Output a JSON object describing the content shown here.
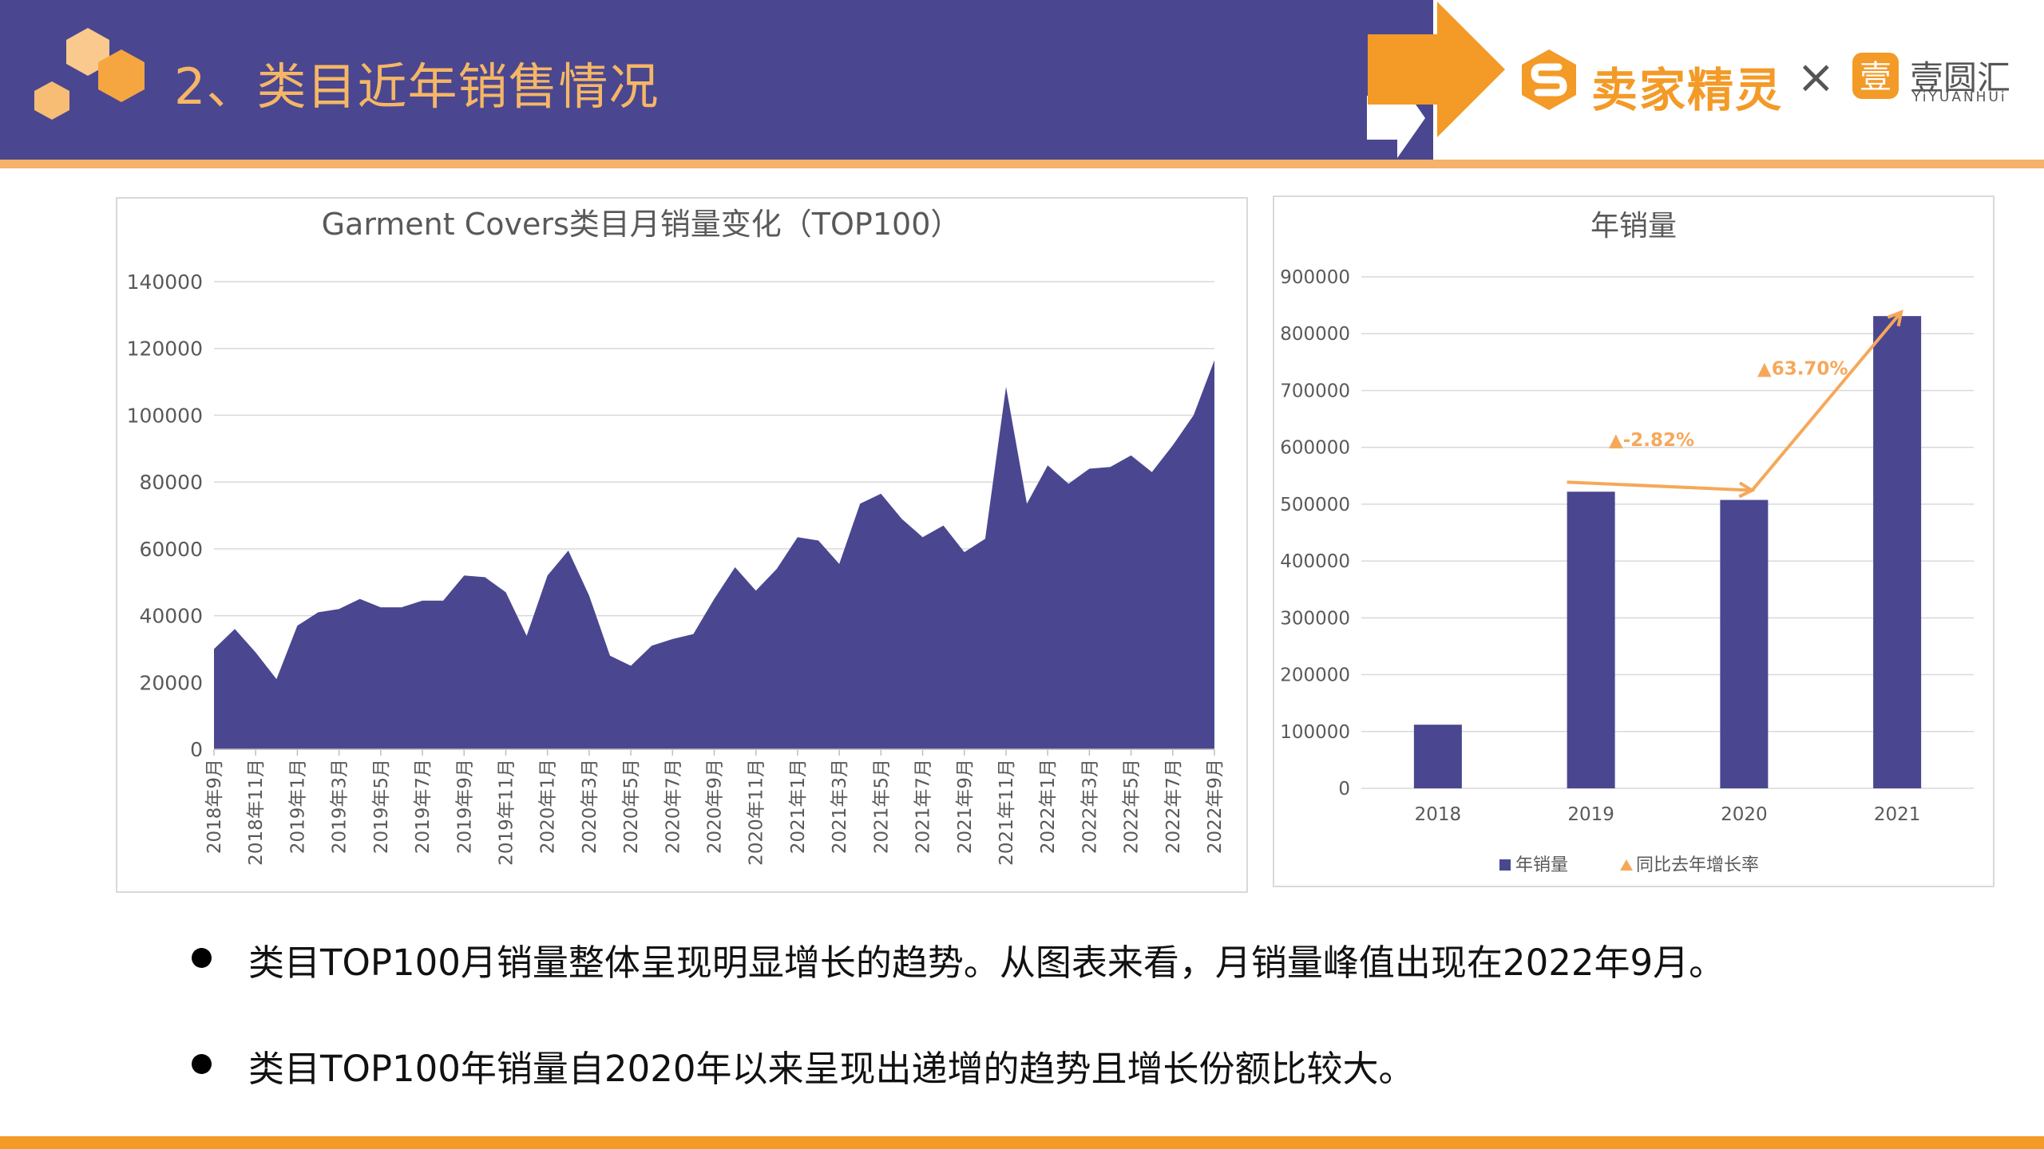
{
  "header": {
    "title": "2、类目近年销售情况",
    "brand_name": "卖家精灵",
    "brand_separator": "×",
    "partner_name": "壹圆汇",
    "partner_name_en": "YiYUANHUi"
  },
  "colors": {
    "header_band": "#4a4790",
    "accent_orange": "#f39a27",
    "title_orange": "#f5b665",
    "series_fill": "#4a4790",
    "annotation": "#f5a85a"
  },
  "chart_data": [
    {
      "type": "area",
      "title": "Garment Covers类目月销量变化（TOP100）",
      "ylim": [
        0,
        140000
      ],
      "y_ticks": [
        "140000",
        "120000",
        "100000",
        "80000",
        "60000",
        "40000",
        "20000",
        "0"
      ],
      "x_tick_labels": [
        "2018年9月",
        "2018年11月",
        "2019年1月",
        "2019年3月",
        "2019年5月",
        "2019年7月",
        "2019年9月",
        "2019年11月",
        "2020年1月",
        "2020年3月",
        "2020年5月",
        "2020年7月",
        "2020年9月",
        "2020年11月",
        "2021年1月",
        "2021年3月",
        "2021年5月",
        "2021年7月",
        "2021年9月",
        "2021年11月",
        "2022年1月",
        "2022年3月",
        "2022年5月",
        "2022年7月",
        "2022年9月"
      ],
      "values": [
        30000,
        36000,
        29000,
        21000,
        37000,
        41000,
        42000,
        45000,
        42500,
        42500,
        44500,
        44500,
        52000,
        51500,
        47000,
        34000,
        52000,
        59500,
        46000,
        28000,
        25000,
        31000,
        33000,
        34500,
        45000,
        54500,
        47500,
        54000,
        63500,
        62500,
        55500,
        73500,
        76500,
        69000,
        63500,
        67000,
        59000,
        63000,
        108500,
        73500,
        85000,
        79500,
        84000,
        84500,
        88000,
        83000,
        91000,
        100000,
        116500
      ],
      "series_name": "月销量"
    },
    {
      "type": "bar",
      "title": "年销量",
      "categories": [
        "2018",
        "2019",
        "2020",
        "2021"
      ],
      "values": [
        112000,
        522000,
        507500,
        831000
      ],
      "ylim": [
        0,
        900000
      ],
      "y_ticks": [
        "900000",
        "800000",
        "700000",
        "600000",
        "500000",
        "400000",
        "300000",
        "200000",
        "100000",
        "0"
      ],
      "legend": [
        "年销量",
        "同比去年增长率"
      ],
      "legend_position": "bottom",
      "growth_labels": [
        "▲-2.82%",
        "▲63.70%"
      ]
    }
  ],
  "bullets": [
    "类目TOP100月销量整体呈现明显增长的趋势。从图表来看，月销量峰值出现在2022年9月。",
    "类目TOP100年销量自2020年以来呈现出递增的趋势且增长份额比较大。"
  ]
}
